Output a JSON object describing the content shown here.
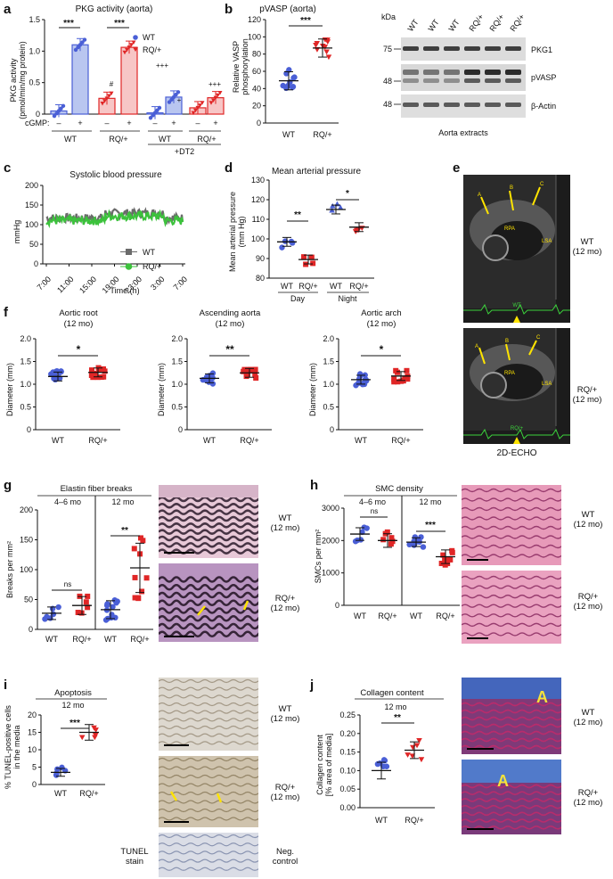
{
  "panels": {
    "a": {
      "label": "a",
      "title": "PKG activity (aorta)",
      "ylabel_1": "PKG activity",
      "ylabel_2": "(pmol/min/mg protein)",
      "yticks": [
        "0",
        "0.5",
        "1.0",
        "1.5"
      ],
      "legend": [
        "WT",
        "RQ/+"
      ],
      "cgmp_label": "cGMP:",
      "cgmp_signs": [
        "–",
        "+",
        "–",
        "+",
        "–",
        "+",
        "–",
        "+"
      ],
      "groups": [
        "WT",
        "RQ/+",
        "WT",
        "RQ/+"
      ],
      "dt2_label": "+DT2",
      "sig": [
        "***",
        "***",
        "#",
        "+++",
        "+",
        "+++"
      ],
      "colors": {
        "wt": "#4a5fd6",
        "rq": "#e02626",
        "wt_bar": "#b9c6f0",
        "rq_bar": "#f7c6c6"
      }
    },
    "b": {
      "label": "b",
      "title": "pVASP (aorta)",
      "ylabel_1": "Relative VASP",
      "ylabel_2": "phosphorylation",
      "yticks": [
        "0",
        "20",
        "40",
        "60",
        "80",
        "100",
        "120"
      ],
      "groups": [
        "WT",
        "RQ/+"
      ],
      "sig": "***",
      "blot": {
        "kda_label": "kDa",
        "lanes": [
          "WT",
          "WT",
          "WT",
          "RQ/+",
          "RQ/+",
          "RQ/+"
        ],
        "markers": [
          "75",
          "48",
          "48"
        ],
        "rows": [
          "PKG1",
          "pVASP",
          "β-Actin"
        ],
        "caption": "Aorta extracts"
      }
    },
    "c": {
      "label": "c",
      "title": "Systolic blood pressure",
      "ylabel": "mmHg",
      "xlabel": "Time (h)",
      "yticks": [
        "0",
        "50",
        "100",
        "150",
        "200"
      ],
      "xticks": [
        "7:00",
        "11:00",
        "15:00",
        "19:00",
        "23:00",
        "3:00",
        "7:00"
      ],
      "legend": [
        "WT",
        "RQ/+"
      ]
    },
    "d": {
      "label": "d",
      "title": "Mean arterial pressure",
      "ylabel_1": "Mean arterial pressure",
      "ylabel_2": "(mm Hg)",
      "yticks": [
        "80",
        "90",
        "100",
        "110",
        "120",
        "130"
      ],
      "groups": [
        "WT",
        "RQ/+",
        "WT",
        "RQ/+"
      ],
      "periods": [
        "Day",
        "Night"
      ],
      "sig": [
        "**",
        "*"
      ]
    },
    "e": {
      "label": "e",
      "echo_labels": [
        "A",
        "B",
        "C",
        "RPA",
        "LSA"
      ],
      "wt_label_1": "WT",
      "wt_label_2": "(12 mo)",
      "rq_label_1": "RQ/+",
      "rq_label_2": "(12 mo)",
      "ecg_wt": "WT",
      "ecg_rq": "RQ/+",
      "caption": "2D-ECHO"
    },
    "f": {
      "label": "f",
      "ylabel": "Diameter (mm)",
      "yticks": [
        "0",
        "0.5",
        "1.0",
        "1.5",
        "2.0"
      ],
      "groups": [
        "WT",
        "RQ/+"
      ],
      "plots": [
        {
          "title_1": "Aortic root",
          "title_2": "(12 mo)",
          "sig": "*"
        },
        {
          "title_1": "Ascending aorta",
          "title_2": "(12 mo)",
          "sig": "**"
        },
        {
          "title_1": "Aortic arch",
          "title_2": "(12 mo)",
          "sig": "*"
        }
      ]
    },
    "g": {
      "label": "g",
      "title": "Elastin fiber breaks",
      "ylabel": "Breaks per mm²",
      "yticks": [
        "0",
        "50",
        "100",
        "150",
        "200"
      ],
      "age_groups": [
        "4–6 mo",
        "12 mo"
      ],
      "groups": [
        "WT",
        "RQ/+",
        "WT",
        "RQ/+"
      ],
      "sig": [
        "ns",
        "**"
      ],
      "wt_label_1": "WT",
      "wt_label_2": "(12 mo)",
      "rq_label_1": "RQ/+",
      "rq_label_2": "(12 mo)"
    },
    "h": {
      "label": "h",
      "title": "SMC density",
      "ylabel": "SMCs per mm²",
      "yticks": [
        "0",
        "1000",
        "2000",
        "3000"
      ],
      "age_groups": [
        "4–6 mo",
        "12 mo"
      ],
      "groups": [
        "WT",
        "RQ/+",
        "WT",
        "RQ/+"
      ],
      "sig": [
        "ns",
        "***"
      ],
      "wt_label_1": "WT",
      "wt_label_2": "(12 mo)",
      "rq_label_1": "RQ/+",
      "rq_label_2": "(12 mo)"
    },
    "i": {
      "label": "i",
      "title": "Apoptosis",
      "subtitle": "12 mo",
      "ylabel_1": "% TUNEL-positive cells",
      "ylabel_2": "in the media",
      "yticks": [
        "0",
        "5",
        "10",
        "15",
        "20"
      ],
      "groups": [
        "WT",
        "RQ/+"
      ],
      "sig": "***",
      "wt_label_1": "WT",
      "wt_label_2": "(12 mo)",
      "rq_label_1": "RQ/+",
      "rq_label_2": "(12 mo)",
      "tunel_1": "TUNEL",
      "tunel_2": "stain",
      "neg_1": "Neg.",
      "neg_2": "control"
    },
    "j": {
      "label": "j",
      "title": "Collagen content",
      "subtitle": "12 mo",
      "ylabel_1": "Collagen content",
      "ylabel_2": "[% area of media]",
      "yticks": [
        "0.00",
        "0.05",
        "0.10",
        "0.15",
        "0.20",
        "0.25"
      ],
      "groups": [
        "WT",
        "RQ/+"
      ],
      "sig": "**",
      "stain_label": "A",
      "wt_label_1": "WT",
      "wt_label_2": "(12 mo)",
      "rq_label_1": "RQ/+",
      "rq_label_2": "(12 mo)"
    }
  },
  "chart_data": [
    {
      "panel": "a",
      "type": "bar",
      "categories": [
        "WT –",
        "WT +",
        "RQ/+ –",
        "RQ/+ +",
        "WT+DT2 –",
        "WT+DT2 +",
        "RQ/+ +DT2 –",
        "RQ/+ +DT2 +"
      ],
      "values": [
        0.05,
        1.1,
        0.25,
        1.06,
        0.02,
        0.27,
        0.1,
        0.26
      ],
      "ylim": [
        0,
        1.5
      ]
    },
    {
      "panel": "b",
      "type": "scatter",
      "categories": [
        "WT",
        "RQ/+"
      ],
      "means": [
        49,
        87
      ],
      "ylim": [
        0,
        120
      ]
    },
    {
      "panel": "c",
      "type": "line",
      "series": [
        {
          "name": "WT",
          "level": 125
        },
        {
          "name": "RQ/+",
          "level": 118
        }
      ],
      "ylim": [
        0,
        200
      ]
    },
    {
      "panel": "d",
      "type": "scatter",
      "categories": [
        "Day WT",
        "Day RQ/+",
        "Night WT",
        "Night RQ/+"
      ],
      "means": [
        98.5,
        89.5,
        115,
        106
      ],
      "ylim": [
        80,
        130
      ]
    },
    {
      "panel": "f",
      "type": "scatter",
      "plots": [
        {
          "means": [
            1.17,
            1.26
          ]
        },
        {
          "means": [
            1.13,
            1.25
          ]
        },
        {
          "means": [
            1.1,
            1.18
          ]
        }
      ],
      "ylim": [
        0,
        2.0
      ]
    },
    {
      "panel": "g",
      "type": "scatter",
      "categories": [
        "4–6 mo WT",
        "4–6 mo RQ/+",
        "12 mo WT",
        "12 mo RQ/+"
      ],
      "means": [
        27,
        40,
        33,
        103
      ],
      "ylim": [
        0,
        200
      ]
    },
    {
      "panel": "h",
      "type": "scatter",
      "categories": [
        "4–6 mo WT",
        "4–6 mo RQ/+",
        "12 mo WT",
        "12 mo RQ/+"
      ],
      "means": [
        2200,
        2000,
        1950,
        1500
      ],
      "ylim": [
        0,
        3000
      ]
    },
    {
      "panel": "i",
      "type": "scatter",
      "categories": [
        "WT",
        "RQ/+"
      ],
      "means": [
        3.5,
        15
      ],
      "ylim": [
        0,
        20
      ]
    },
    {
      "panel": "j",
      "type": "scatter",
      "categories": [
        "WT",
        "RQ/+"
      ],
      "means": [
        0.1,
        0.155
      ],
      "ylim": [
        0,
        0.25
      ]
    }
  ]
}
